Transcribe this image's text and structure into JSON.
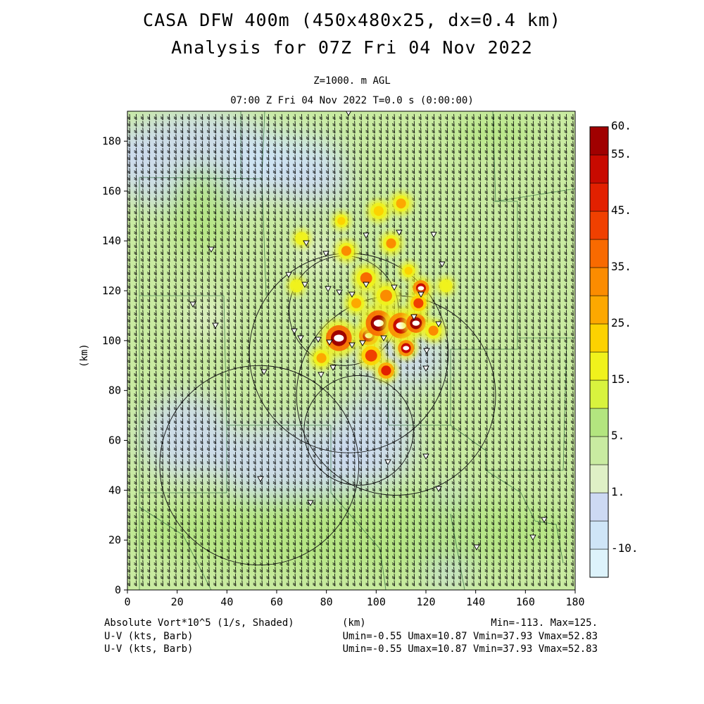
{
  "title": {
    "line1": "CASA DFW 400m (450x480x25, dx=0.4 km)",
    "line2": "Analysis for 07Z Fri 04 Nov 2022"
  },
  "subtitle": {
    "level": "Z=1000. m AGL",
    "time": "07:00 Z Fri 04 Nov 2022    T=0.0 s (0:00:00)"
  },
  "axes": {
    "ylabel": "(km)",
    "xlabel": "(km)",
    "x_ticks": [
      "0",
      "20",
      "40",
      "60",
      "80",
      "100",
      "120",
      "140",
      "160",
      "180"
    ],
    "y_ticks": [
      "0",
      "20",
      "40",
      "60",
      "80",
      "100",
      "120",
      "140",
      "160",
      "180"
    ]
  },
  "colorbar": {
    "labels": [
      "60.",
      "55.",
      "45.",
      "35.",
      "25.",
      "15.",
      "5.",
      "1.",
      "-10."
    ],
    "colors": [
      "#ddf3fb",
      "#cfe5f7",
      "#cdd9f3",
      "#dff0c6",
      "#c9eba1",
      "#b3e57f",
      "#d8f33e",
      "#f0f21c",
      "#fdd200",
      "#fda800",
      "#fb8c00",
      "#f86a00",
      "#f04000",
      "#e22000",
      "#c80a00",
      "#a00000"
    ]
  },
  "footer": {
    "left1": "Absolute Vort*10^5 (1/s, Shaded)",
    "left2": "U-V (kts, Barb)",
    "left3": "U-V (kts, Barb)",
    "center1": "(km)",
    "right1": "Min=-113. Max=125.",
    "right2": "Umin=-0.55 Umax=10.87 Vmin=37.93 Vmax=52.83",
    "right3": "Umin=-0.55 Umax=10.87 Vmin=37.93 Vmax=52.83"
  },
  "map_data": {
    "domain_km": {
      "x": [
        0,
        180
      ],
      "y": [
        0,
        192
      ]
    },
    "radars": [
      {
        "x_km": 89,
        "y_km": 95,
        "range_km": 40
      },
      {
        "x_km": 87,
        "y_km": 112,
        "range_km": 22
      },
      {
        "x_km": 53,
        "y_km": 50,
        "range_km": 40
      },
      {
        "x_km": 93,
        "y_km": 64,
        "range_km": 22
      },
      {
        "x_km": 108,
        "y_km": 78,
        "range_km": 40
      }
    ],
    "vorticity_cells": [
      {
        "x_km": 85,
        "y_km": 101,
        "r_km": 4,
        "value": 60
      },
      {
        "x_km": 97,
        "y_km": 102,
        "r_km": 3,
        "value": 55
      },
      {
        "x_km": 101,
        "y_km": 107,
        "r_km": 4,
        "value": 60
      },
      {
        "x_km": 110,
        "y_km": 106,
        "r_km": 4,
        "value": 55
      },
      {
        "x_km": 116,
        "y_km": 107,
        "r_km": 3,
        "value": 60
      },
      {
        "x_km": 98,
        "y_km": 94,
        "r_km": 3,
        "value": 45
      },
      {
        "x_km": 112,
        "y_km": 97,
        "r_km": 2.5,
        "value": 55
      },
      {
        "x_km": 104,
        "y_km": 88,
        "r_km": 2.5,
        "value": 50
      },
      {
        "x_km": 118,
        "y_km": 121,
        "r_km": 2.5,
        "value": 55
      },
      {
        "x_km": 117,
        "y_km": 115,
        "r_km": 2.5,
        "value": 45
      },
      {
        "x_km": 96,
        "y_km": 125,
        "r_km": 3,
        "value": 40
      },
      {
        "x_km": 88,
        "y_km": 136,
        "r_km": 2.5,
        "value": 35
      },
      {
        "x_km": 106,
        "y_km": 139,
        "r_km": 2.5,
        "value": 35
      },
      {
        "x_km": 110,
        "y_km": 155,
        "r_km": 2.5,
        "value": 30
      },
      {
        "x_km": 101,
        "y_km": 152,
        "r_km": 2.5,
        "value": 25
      },
      {
        "x_km": 86,
        "y_km": 148,
        "r_km": 2,
        "value": 25
      },
      {
        "x_km": 78,
        "y_km": 93,
        "r_km": 2.5,
        "value": 30
      },
      {
        "x_km": 68,
        "y_km": 122,
        "r_km": 2,
        "value": 20
      },
      {
        "x_km": 70,
        "y_km": 141,
        "r_km": 2,
        "value": 20
      },
      {
        "x_km": 123,
        "y_km": 104,
        "r_km": 2.5,
        "value": 35
      },
      {
        "x_km": 92,
        "y_km": 115,
        "r_km": 2.5,
        "value": 30
      },
      {
        "x_km": 104,
        "y_km": 118,
        "r_km": 3,
        "value": 35
      },
      {
        "x_km": 113,
        "y_km": 128,
        "r_km": 2,
        "value": 25
      },
      {
        "x_km": 128,
        "y_km": 122,
        "r_km": 2,
        "value": 20
      }
    ]
  }
}
